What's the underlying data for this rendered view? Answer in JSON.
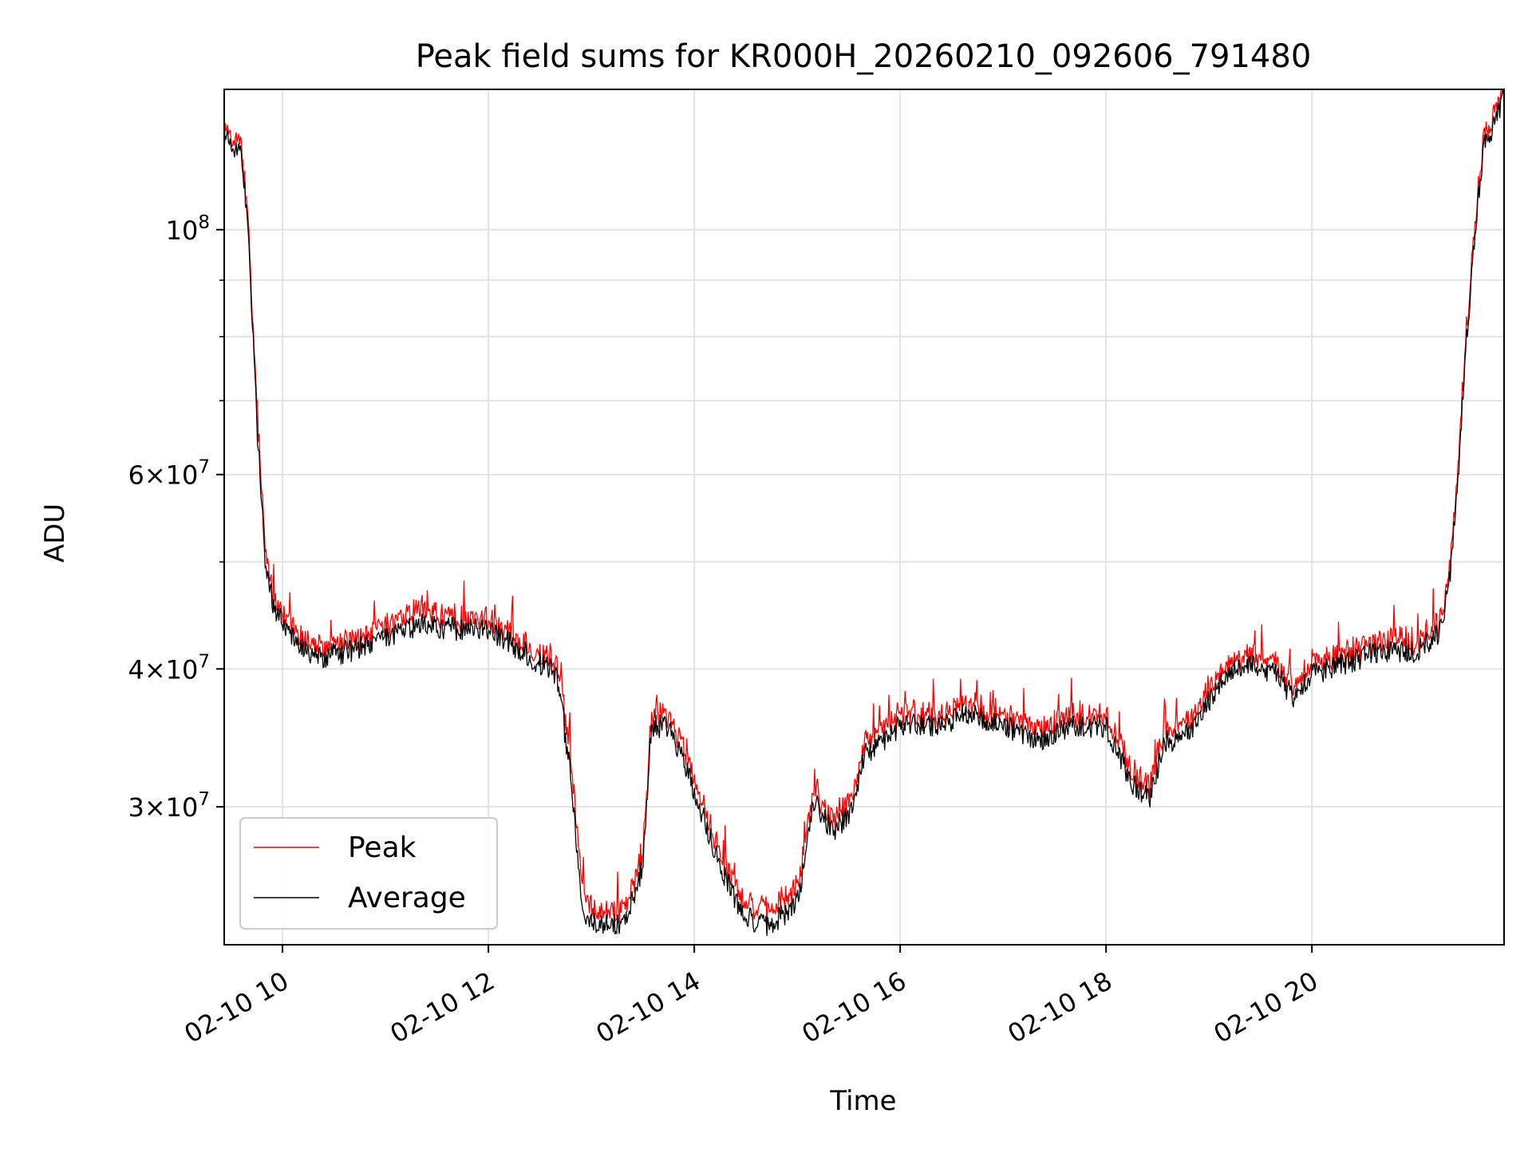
{
  "chart_data": {
    "type": "line",
    "title": "Peak field sums for KR000H_20260210_092606_791480",
    "xlabel": "Time",
    "ylabel": "ADU",
    "yscale": "log",
    "xlim": [
      "2026-02-10 09:26",
      "2026-02-10 21:52"
    ],
    "ylim": [
      22500000,
      134000000
    ],
    "x_tick_labels": [
      "02-10 10",
      "02-10 12",
      "02-10 14",
      "02-10 16",
      "02-10 18",
      "02-10 20"
    ],
    "x_tick_times": [
      "2026-02-10 10:00",
      "2026-02-10 12:00",
      "2026-02-10 14:00",
      "2026-02-10 16:00",
      "2026-02-10 18:00",
      "2026-02-10 20:00"
    ],
    "y_tick_values": [
      30000000,
      40000000,
      60000000,
      100000000
    ],
    "y_tick_labels": [
      {
        "mantissa": "3",
        "base": "10",
        "exponent": "7"
      },
      {
        "mantissa": "4",
        "base": "10",
        "exponent": "7"
      },
      {
        "mantissa": "6",
        "base": "10",
        "exponent": "7"
      },
      {
        "mantissa": "",
        "base": "10",
        "exponent": "8"
      }
    ],
    "y_minor_values": [
      50000000,
      70000000,
      80000000,
      90000000
    ],
    "grid": true,
    "legend_position": "lower-left",
    "series": [
      {
        "name": "Peak",
        "color": "#ff0000"
      },
      {
        "name": "Average",
        "color": "#000000"
      }
    ],
    "x": [
      "2026-02-10 09:26",
      "2026-02-10 09:36",
      "2026-02-10 09:40",
      "2026-02-10 09:45",
      "2026-02-10 09:50",
      "2026-02-10 09:55",
      "2026-02-10 10:00",
      "2026-02-10 10:10",
      "2026-02-10 10:20",
      "2026-02-10 10:40",
      "2026-02-10 11:00",
      "2026-02-10 11:20",
      "2026-02-10 11:40",
      "2026-02-10 12:00",
      "2026-02-10 12:20",
      "2026-02-10 12:30",
      "2026-02-10 12:40",
      "2026-02-10 12:48",
      "2026-02-10 12:55",
      "2026-02-10 13:00",
      "2026-02-10 13:10",
      "2026-02-10 13:20",
      "2026-02-10 13:30",
      "2026-02-10 13:35",
      "2026-02-10 13:45",
      "2026-02-10 13:55",
      "2026-02-10 14:05",
      "2026-02-10 14:15",
      "2026-02-10 14:25",
      "2026-02-10 14:35",
      "2026-02-10 14:45",
      "2026-02-10 15:00",
      "2026-02-10 15:10",
      "2026-02-10 15:20",
      "2026-02-10 15:30",
      "2026-02-10 15:40",
      "2026-02-10 15:50",
      "2026-02-10 16:00",
      "2026-02-10 16:20",
      "2026-02-10 16:40",
      "2026-02-10 17:00",
      "2026-02-10 17:20",
      "2026-02-10 17:40",
      "2026-02-10 18:00",
      "2026-02-10 18:15",
      "2026-02-10 18:25",
      "2026-02-10 18:35",
      "2026-02-10 18:45",
      "2026-02-10 19:00",
      "2026-02-10 19:10",
      "2026-02-10 19:20",
      "2026-02-10 19:40",
      "2026-02-10 19:50",
      "2026-02-10 20:00",
      "2026-02-10 20:20",
      "2026-02-10 20:40",
      "2026-02-10 21:00",
      "2026-02-10 21:10",
      "2026-02-10 21:15",
      "2026-02-10 21:20",
      "2026-02-10 21:25",
      "2026-02-10 21:30",
      "2026-02-10 21:35",
      "2026-02-10 21:40",
      "2026-02-10 21:45",
      "2026-02-10 21:52"
    ],
    "peak": [
      122000000,
      119000000,
      100000000,
      68000000,
      51000000,
      46000000,
      44500000,
      42500000,
      41500000,
      42000000,
      43000000,
      45000000,
      44000000,
      44000000,
      42000000,
      41000000,
      40000000,
      33000000,
      25000000,
      24000000,
      24000000,
      24000000,
      27000000,
      36000000,
      36000000,
      33000000,
      30000000,
      27000000,
      25000000,
      24000000,
      24000000,
      25000000,
      31000000,
      29000000,
      30000000,
      34000000,
      35000000,
      36000000,
      36000000,
      37000000,
      36000000,
      35000000,
      36000000,
      36000000,
      32000000,
      31000000,
      35000000,
      35000000,
      38000000,
      40000000,
      41000000,
      40000000,
      38000000,
      40000000,
      41000000,
      42000000,
      42000000,
      43000000,
      44000000,
      48000000,
      60000000,
      80000000,
      100000000,
      120000000,
      124000000,
      134000000
    ],
    "average": [
      121000000,
      118000000,
      99000000,
      67000000,
      50000000,
      45500000,
      44000000,
      42000000,
      41000000,
      41500000,
      42500000,
      44000000,
      43500000,
      43500000,
      41500000,
      40500000,
      39500000,
      32000000,
      24000000,
      23500000,
      23500000,
      23500000,
      26500000,
      35500000,
      35500000,
      32500000,
      29500000,
      26500000,
      24500000,
      23500000,
      23500000,
      24500000,
      30500000,
      28500000,
      29500000,
      33500000,
      34500000,
      35500000,
      35500000,
      36500000,
      35500000,
      34500000,
      35500000,
      35500000,
      31500000,
      30500000,
      34500000,
      34500000,
      37500000,
      39500000,
      40500000,
      39500000,
      37500000,
      39500000,
      40500000,
      41500000,
      41500000,
      42500000,
      43500000,
      47500000,
      59000000,
      79000000,
      99000000,
      119000000,
      123000000,
      133000000
    ]
  }
}
